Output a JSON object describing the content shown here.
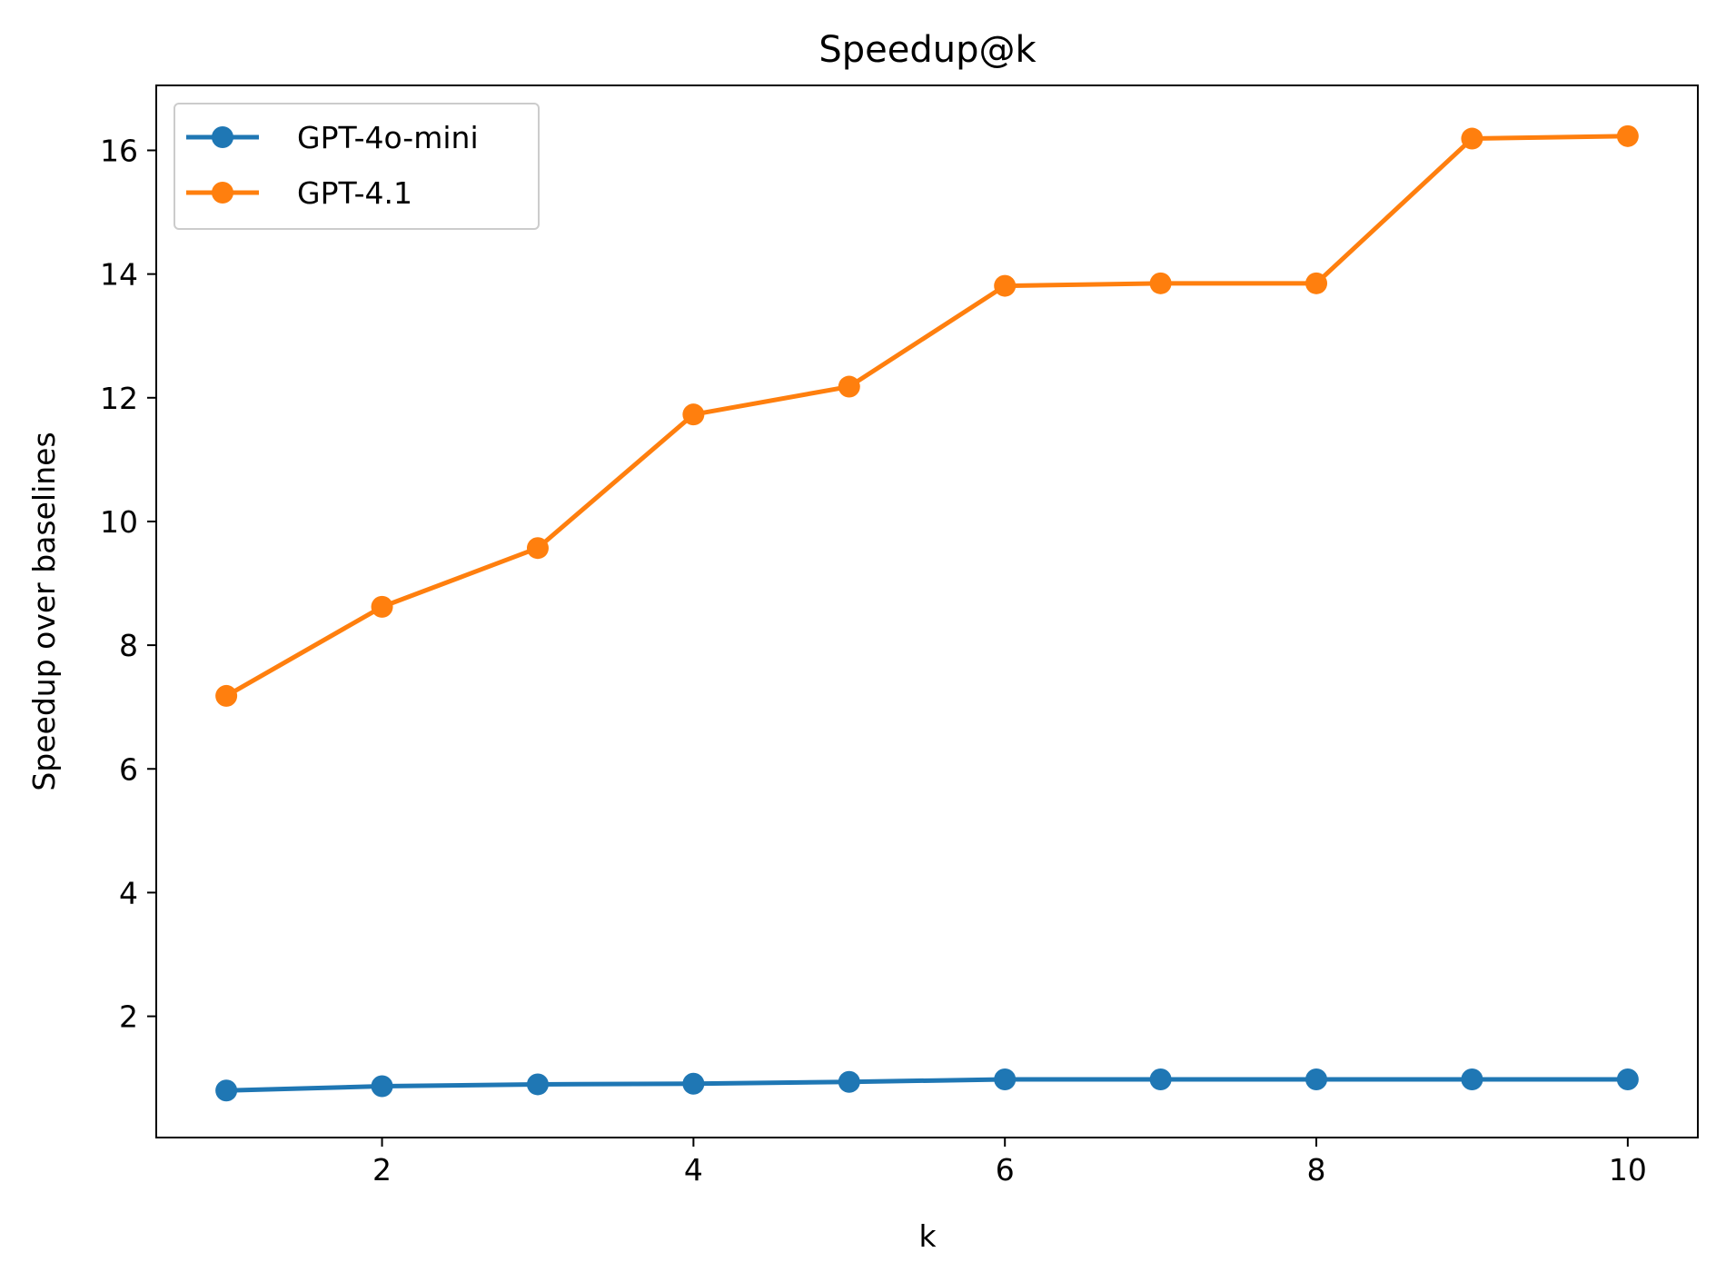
{
  "chart_data": {
    "type": "line",
    "title": "Speedup@k",
    "xlabel": "k",
    "ylabel": "Speedup over baselines",
    "x": [
      1,
      2,
      3,
      4,
      5,
      6,
      7,
      8,
      9,
      10
    ],
    "xlim": [
      0.55,
      10.45
    ],
    "ylim": [
      0.04,
      17.05
    ],
    "xticks": [
      2,
      4,
      6,
      8,
      10
    ],
    "yticks": [
      2,
      4,
      6,
      8,
      10,
      12,
      14,
      16
    ],
    "grid": false,
    "legend_position": "top-left",
    "series": [
      {
        "name": "GPT-4o-mini",
        "color": "#1f77b4",
        "marker": "circle",
        "values": [
          0.8,
          0.87,
          0.9,
          0.91,
          0.94,
          0.98,
          0.98,
          0.98,
          0.98,
          0.98
        ]
      },
      {
        "name": "GPT-4.1",
        "color": "#ff7f0e",
        "marker": "circle",
        "values": [
          7.18,
          8.62,
          9.57,
          11.73,
          12.18,
          13.81,
          13.85,
          13.85,
          16.19,
          16.23
        ]
      }
    ]
  }
}
